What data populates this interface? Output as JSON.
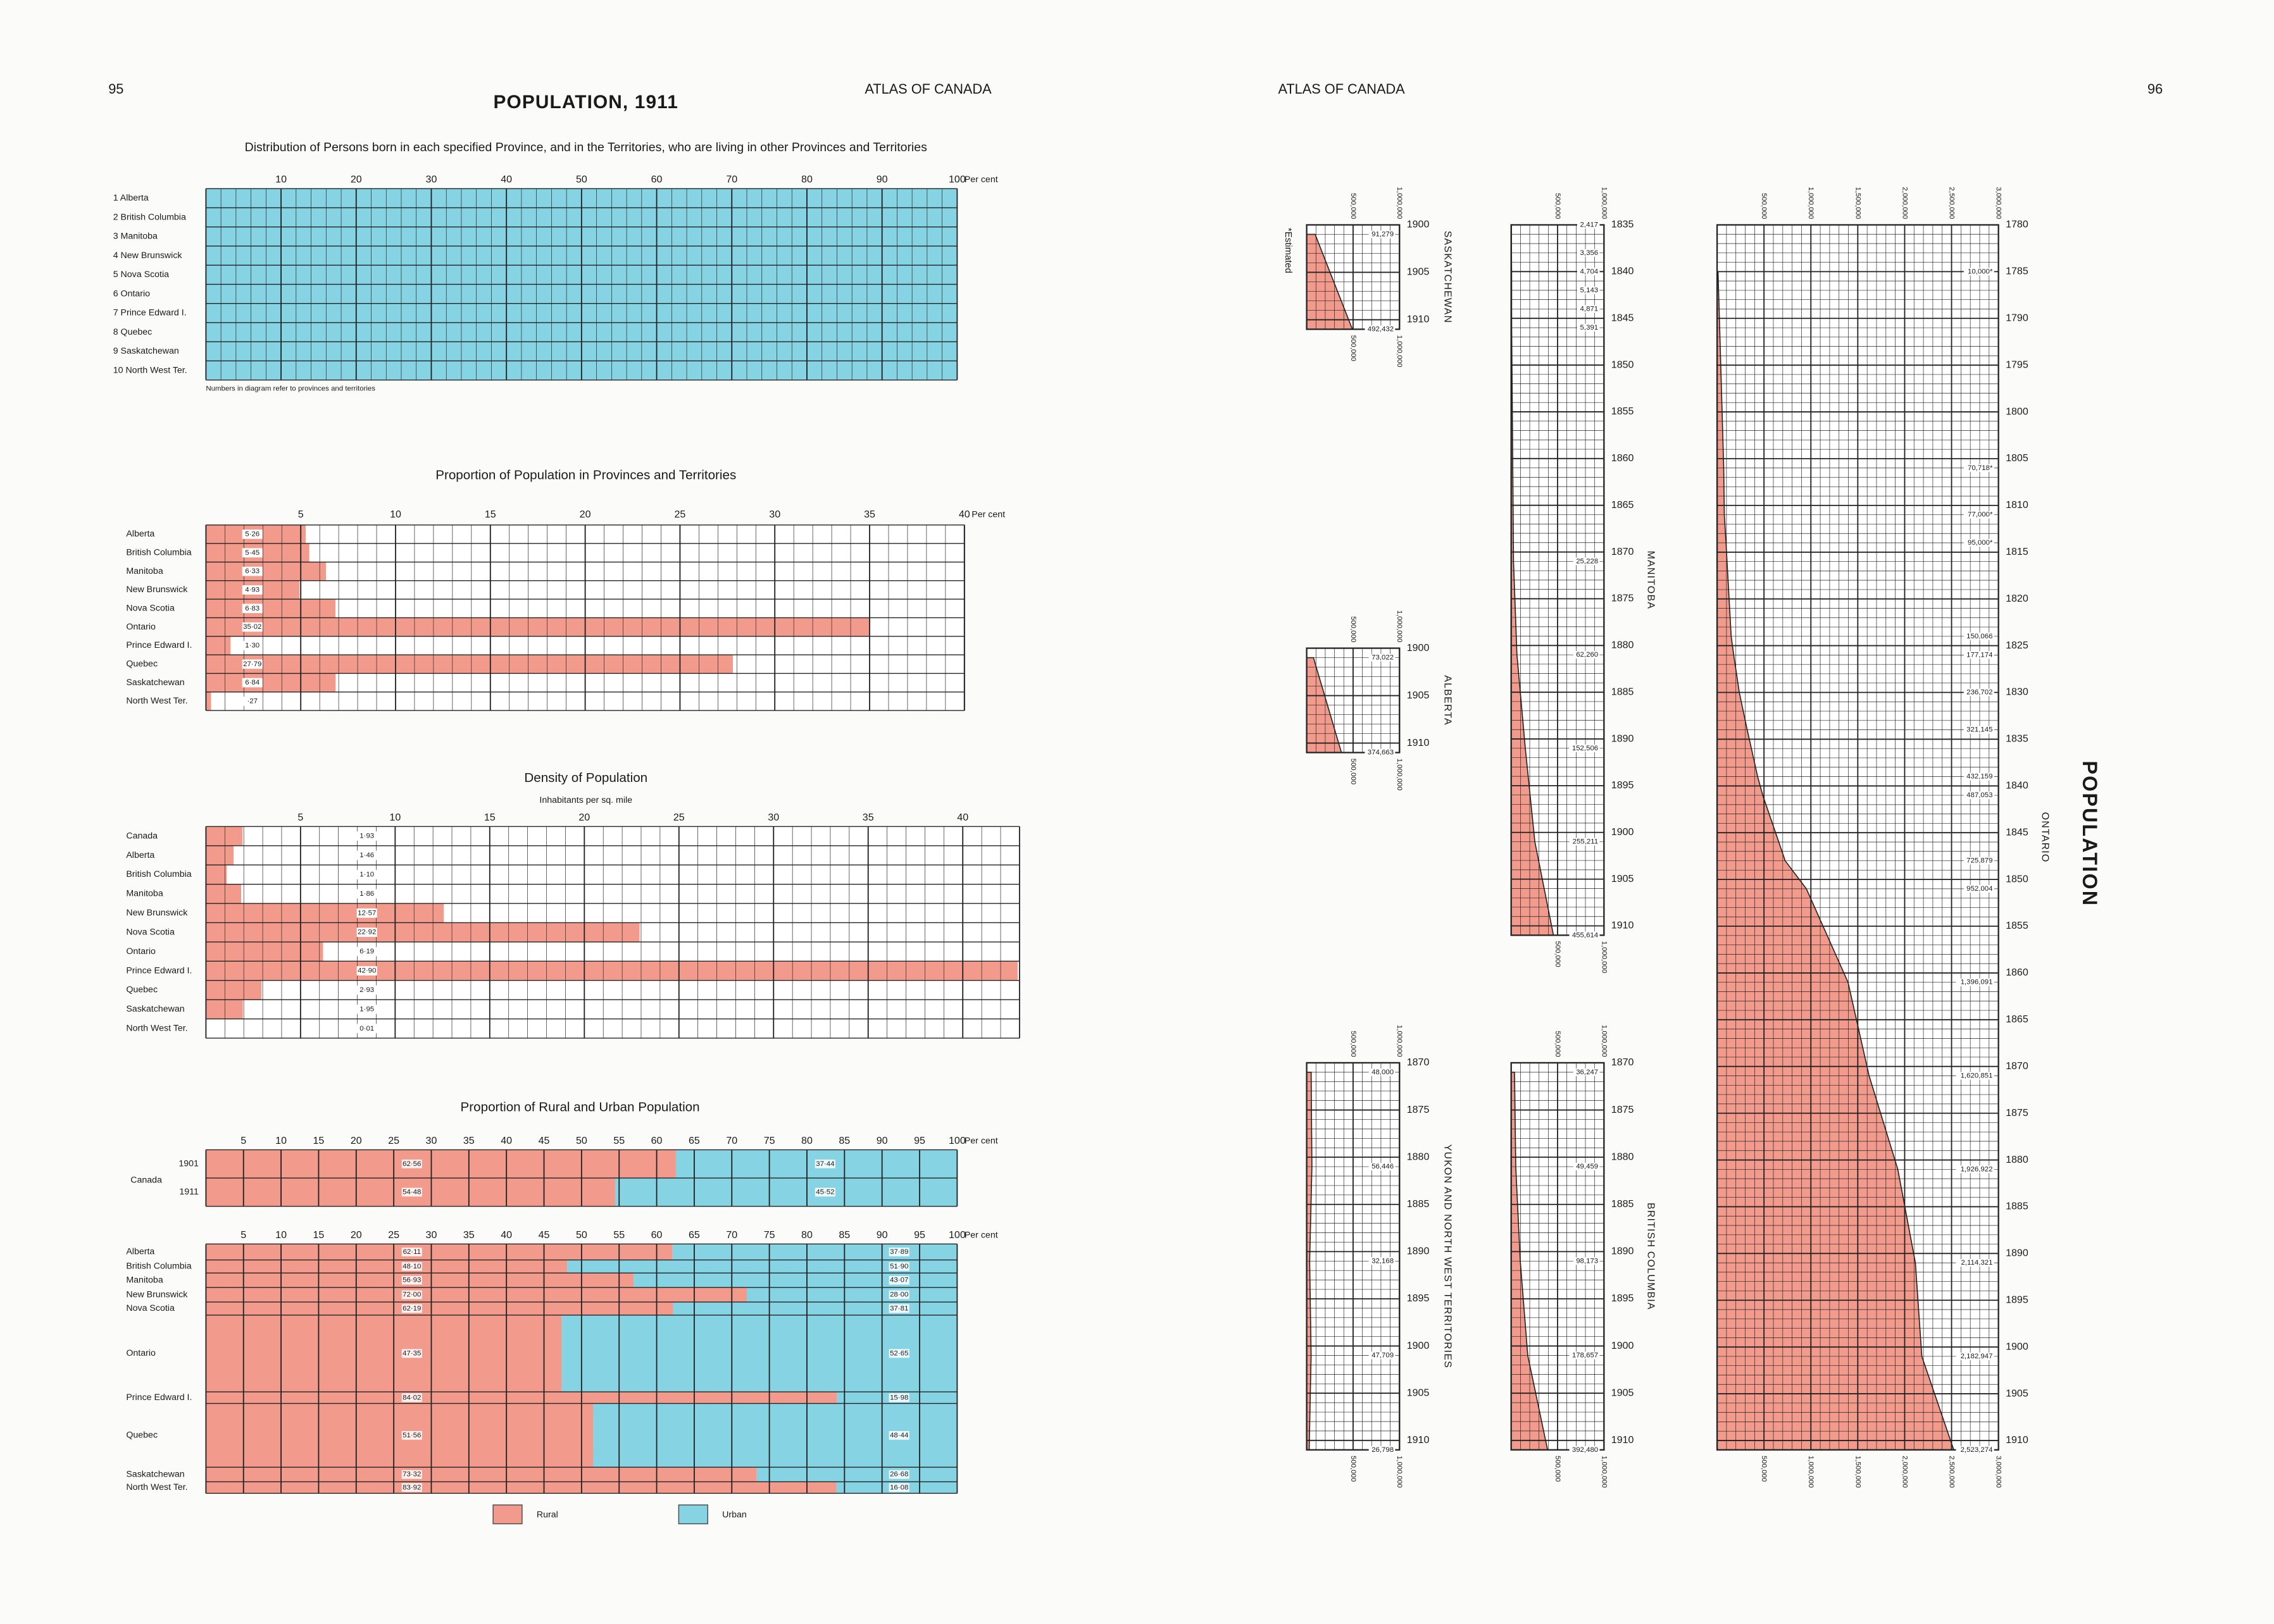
{
  "header": {
    "page_left": "95",
    "page_right": "96",
    "title": "POPULATION, 1911",
    "running_left": "ATLAS OF CANADA",
    "running_right": "ATLAS OF CANADA",
    "side_title": "POPULATION"
  },
  "chart_data": [
    {
      "type": "distribution",
      "title": "Distribution of Persons born in each specified Province, and in the Territories, who are living in other Provinces and Territories",
      "categories": [
        "1 Alberta",
        "2 British Columbia",
        "3 Manitoba",
        "4 New Brunswick",
        "5 Nova Scotia",
        "6 Ontario",
        "7 Prince Edward I.",
        "8 Quebec",
        "9 Saskatchewan",
        "10 North West Ter."
      ],
      "values": [
        100,
        100,
        100,
        100,
        100,
        100,
        100,
        100,
        100,
        100
      ],
      "color": "#86d3e3",
      "xlim": [
        0,
        100
      ],
      "xticks": [
        10,
        20,
        30,
        40,
        50,
        60,
        70,
        80,
        90,
        100
      ],
      "xlabel": "Per cent",
      "note": "Numbers in diagram refer to provinces and territories"
    },
    {
      "type": "hbar",
      "title": "Proportion of Population in Provinces and Territories",
      "categories": [
        "Alberta",
        "British Columbia",
        "Manitoba",
        "New Brunswick",
        "Nova Scotia",
        "Ontario",
        "Prince Edward I.",
        "Quebec",
        "Saskatchewan",
        "North West Ter."
      ],
      "values": [
        5.26,
        5.45,
        6.33,
        4.93,
        6.83,
        35.02,
        1.3,
        27.79,
        6.84,
        0.27
      ],
      "value_labels": [
        "5·26",
        "5·45",
        "6·33",
        "4·93",
        "6·83",
        "35·02",
        "1·30",
        "27·79",
        "6·84",
        "·27"
      ],
      "color": "#f29b8c",
      "xlim": [
        0,
        40
      ],
      "xticks": [
        5,
        10,
        15,
        20,
        25,
        30,
        35,
        40
      ],
      "xlabel": "Per cent"
    },
    {
      "type": "hbar",
      "title": "Density of Population",
      "subtitle": "Inhabitants per sq. mile",
      "categories": [
        "Canada",
        "Alberta",
        "British Columbia",
        "Manitoba",
        "New Brunswick",
        "Nova Scotia",
        "Ontario",
        "Prince Edward I.",
        "Quebec",
        "Saskatchewan",
        "North West Ter."
      ],
      "values": [
        1.93,
        1.46,
        1.1,
        1.86,
        12.57,
        22.92,
        6.19,
        42.9,
        2.93,
        1.95,
        0.01
      ],
      "value_labels": [
        "1·93",
        "1·46",
        "1·10",
        "1·86",
        "12·57",
        "22·92",
        "6·19",
        "42·90",
        "2·93",
        "1·95",
        "0·01"
      ],
      "color": "#f29b8c",
      "xlim": [
        0,
        43
      ],
      "xticks": [
        5,
        10,
        15,
        20,
        25,
        30,
        35,
        40
      ]
    },
    {
      "type": "stacked_hbar",
      "title": "Proportion of Rural and Urban Population",
      "group_label": "Canada",
      "categories": [
        "1901",
        "1911",
        "Alberta",
        "British Columbia",
        "Manitoba",
        "New Brunswick",
        "Nova Scotia",
        "Ontario",
        "Prince Edward I.",
        "Quebec",
        "Saskatchewan",
        "North West Ter."
      ],
      "series": [
        {
          "name": "Rural",
          "color": "#f29b8c",
          "values": [
            62.56,
            54.48,
            62.11,
            48.1,
            56.93,
            72.0,
            62.19,
            47.35,
            84.02,
            51.56,
            73.32,
            83.92
          ],
          "value_labels": [
            "62·56",
            "54·48",
            "62·11",
            "48·10",
            "56·93",
            "72·00",
            "62·19",
            "47·35",
            "84·02",
            "51·56",
            "73·32",
            "83·92"
          ]
        },
        {
          "name": "Urban",
          "color": "#86d3e3",
          "values": [
            37.44,
            45.52,
            37.89,
            51.9,
            43.07,
            28.0,
            37.81,
            52.65,
            15.98,
            48.44,
            26.68,
            16.08
          ],
          "value_labels": [
            "37·44",
            "45·52",
            "37·89",
            "51·90",
            "43·07",
            "28·00",
            "37·81",
            "52·65",
            "15·98",
            "48·44",
            "26·68",
            "16·08"
          ]
        }
      ],
      "xlim": [
        0,
        100
      ],
      "xticks": [
        5,
        10,
        15,
        20,
        25,
        30,
        35,
        40,
        45,
        50,
        55,
        60,
        65,
        70,
        75,
        80,
        85,
        90,
        95,
        100
      ],
      "xlabel": "Per cent"
    },
    {
      "type": "area",
      "title": "SASKATCHEWAN",
      "note": "*Estimated",
      "x": [
        1901,
        1911
      ],
      "values": [
        91279,
        492432
      ],
      "value_labels": [
        "91,279",
        "492,432"
      ],
      "color": "#f29b8c",
      "xlim": [
        1900,
        1911
      ],
      "xticks": [
        1900,
        1905,
        1910
      ],
      "ylim": [
        0,
        1000000
      ],
      "yticks": [
        {
          "value": 500000,
          "label": "500,000"
        },
        {
          "value": 1000000,
          "label": "1,000,000"
        }
      ]
    },
    {
      "type": "area",
      "title": "ALBERTA",
      "x": [
        1901,
        1911
      ],
      "values": [
        73022,
        374663
      ],
      "value_labels": [
        "73,022",
        "374,663"
      ],
      "color": "#f29b8c",
      "xlim": [
        1900,
        1911
      ],
      "xticks": [
        1900,
        1905,
        1910
      ],
      "ylim": [
        0,
        1000000
      ],
      "yticks": [
        {
          "value": 500000,
          "label": "500,000"
        },
        {
          "value": 1000000,
          "label": "1,000,000"
        }
      ]
    },
    {
      "type": "area",
      "title": "MANITOBA",
      "x": [
        1835,
        1838,
        1840,
        1842,
        1844,
        1846,
        1871,
        1881,
        1891,
        1901,
        1911
      ],
      "values": [
        2417,
        3356,
        4704,
        5143,
        4871,
        5391,
        25228,
        62260,
        152506,
        255211,
        455614
      ],
      "value_labels": [
        "2,417",
        "3,356",
        "4,704",
        "5,143",
        "4,871",
        "5,391",
        "25,228",
        "62,260",
        "152,506",
        "255,211",
        "455,614"
      ],
      "color": "#f29b8c",
      "xlim": [
        1835,
        1911
      ],
      "xticks": [
        1835,
        1840,
        1845,
        1850,
        1855,
        1860,
        1865,
        1870,
        1875,
        1880,
        1885,
        1890,
        1895,
        1900,
        1905,
        1910
      ],
      "ylim": [
        0,
        1000000
      ],
      "yticks": [
        {
          "value": 500000,
          "label": "500,000"
        },
        {
          "value": 1000000,
          "label": "1,000,000"
        }
      ]
    },
    {
      "type": "area",
      "title": "YUKON AND NORTH WEST TERRITORIES",
      "x": [
        1871,
        1881,
        1891,
        1901,
        1911
      ],
      "values": [
        48000,
        56446,
        32168,
        47709,
        26798
      ],
      "value_labels": [
        "48,000",
        "56,446",
        "32,168",
        "47,709",
        "26,798"
      ],
      "color": "#f29b8c",
      "xlim": [
        1870,
        1911
      ],
      "xticks": [
        1870,
        1875,
        1880,
        1885,
        1890,
        1895,
        1900,
        1905,
        1910
      ],
      "ylim": [
        0,
        1000000
      ],
      "yticks": [
        {
          "value": 500000,
          "label": "500,000"
        },
        {
          "value": 1000000,
          "label": "1,000,000"
        }
      ]
    },
    {
      "type": "area",
      "title": "BRITISH COLUMBIA",
      "x": [
        1871,
        1881,
        1891,
        1901,
        1911
      ],
      "values": [
        36247,
        49459,
        98173,
        178657,
        392480
      ],
      "value_labels": [
        "36,247",
        "49,459",
        "98,173",
        "178,657",
        "392,480"
      ],
      "color": "#f29b8c",
      "xlim": [
        1870,
        1911
      ],
      "xticks": [
        1870,
        1875,
        1880,
        1885,
        1890,
        1895,
        1900,
        1905,
        1910
      ],
      "ylim": [
        0,
        1000000
      ],
      "yticks": [
        {
          "value": 500000,
          "label": "500,000"
        },
        {
          "value": 1000000,
          "label": "1,000,000"
        }
      ]
    },
    {
      "type": "area",
      "title": "ONTARIO",
      "x": [
        1785,
        1806,
        1811,
        1814,
        1824,
        1826,
        1830,
        1834,
        1839,
        1841,
        1848,
        1851,
        1861,
        1871,
        1881,
        1891,
        1901,
        1911
      ],
      "values": [
        10000,
        70718,
        77000,
        95000,
        150066,
        177174,
        236702,
        321145,
        432159,
        487053,
        725879,
        952004,
        1396091,
        1620851,
        1926922,
        2114321,
        2182947,
        2523274
      ],
      "value_labels": [
        "10,000*",
        "70,718*",
        "77,000*",
        "95,000*",
        "150,066",
        "177,174",
        "236,702",
        "321,145",
        "432,159",
        "487,053",
        "725,879",
        "952,004",
        "1,396,091",
        "1,620,851",
        "1,926,922",
        "2,114,321",
        "2,182,947",
        "2,523,274"
      ],
      "color": "#f29b8c",
      "xlim": [
        1780,
        1911
      ],
      "xticks": [
        1780,
        1785,
        1790,
        1795,
        1800,
        1805,
        1810,
        1815,
        1820,
        1825,
        1830,
        1835,
        1840,
        1845,
        1850,
        1855,
        1860,
        1865,
        1870,
        1875,
        1880,
        1885,
        1890,
        1895,
        1900,
        1905,
        1910
      ],
      "ylim": [
        0,
        3000000
      ],
      "yticks": [
        {
          "value": 500000,
          "label": "500,000"
        },
        {
          "value": 1000000,
          "label": "1,000,000"
        },
        {
          "value": 1500000,
          "label": "1,500,000"
        },
        {
          "value": 2000000,
          "label": "2,000,000"
        },
        {
          "value": 2500000,
          "label": "2,500,000"
        },
        {
          "value": 3000000,
          "label": "3,000,000"
        }
      ]
    }
  ]
}
